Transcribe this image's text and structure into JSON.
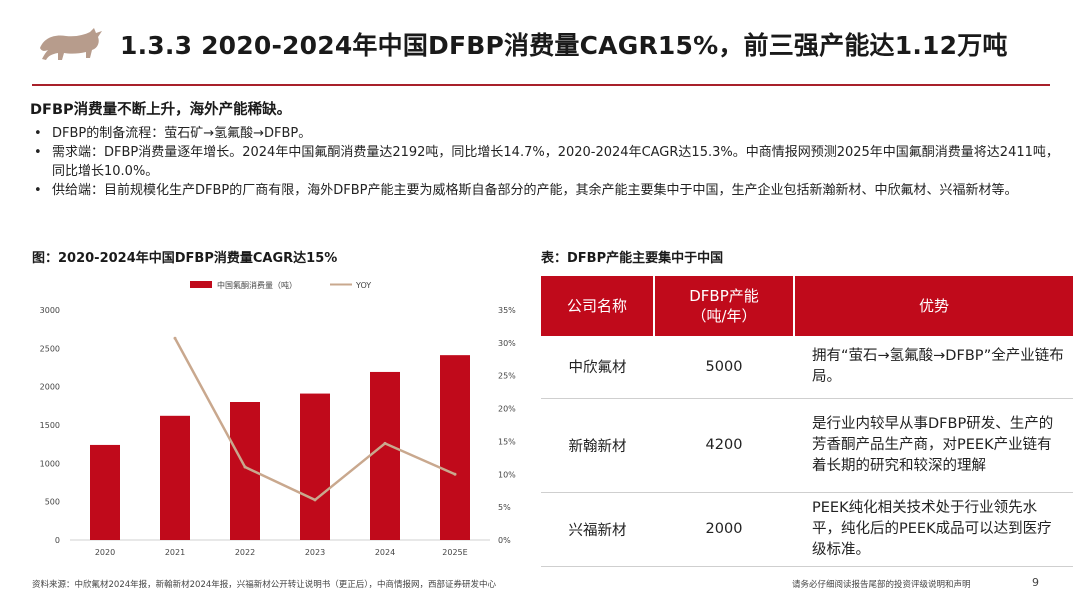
{
  "header": {
    "title": "1.3.3 2020-2024年中国DFBP消费量CAGR15%，前三强产能达1.12万吨"
  },
  "summary": {
    "headline": "DFBP消费量不断上升，海外产能稀缺。",
    "bullets": [
      "DFBP的制备流程：萤石矿→氢氟酸→DFBP。",
      "需求端：DFBP消费量逐年增长。2024年中国氟酮消费量达2192吨，同比增长14.7%，2020-2024年CAGR达15.3%。中商情报网预测2025年中国氟酮消费量将达2411吨，同比增长10.0%。",
      "供给端：目前规模化生产DFBP的厂商有限，海外DFBP产能主要为威格斯自备部分的产能，其余产能主要集中于中国，生产企业包括新瀚新材、中欣氟材、兴福新材等。"
    ]
  },
  "figure_caption": "图：2020-2024年中国DFBP消费量CAGR达15%",
  "table_caption": "表：DFBP产能主要集中于中国",
  "chart_data": {
    "type": "bar",
    "categories": [
      "2020",
      "2021",
      "2022",
      "2023",
      "2024",
      "2025E"
    ],
    "series": [
      {
        "name": "中国氟酮消费量（吨）",
        "kind": "bar",
        "axis": "left",
        "color": "#c00a1b",
        "values": [
          1240,
          1620,
          1800,
          1910,
          2192,
          2411
        ]
      },
      {
        "name": "YOY",
        "kind": "line",
        "axis": "right",
        "color": "#c9a88e",
        "values": [
          null,
          30.7,
          11.1,
          6.1,
          14.7,
          10.0
        ]
      }
    ],
    "ylim": [
      0,
      3000
    ],
    "y_ticks": [
      "0",
      "500",
      "1000",
      "1500",
      "2000",
      "2500",
      "3000"
    ],
    "y2lim": [
      0,
      35
    ],
    "y2_ticks": [
      "0%",
      "5%",
      "10%",
      "15%",
      "20%",
      "25%",
      "30%",
      "35%"
    ],
    "legend_position": "top",
    "grid": false
  },
  "table": {
    "headers": [
      "公司名称",
      "DFBP产能（吨/年）",
      "优势"
    ],
    "rows": [
      {
        "company": "中欣氟材",
        "capacity": "5000",
        "advantage": "拥有“萤石→氢氟酸→DFBP”全产业链布局。"
      },
      {
        "company": "新翰新材",
        "capacity": "4200",
        "advantage": "是行业内较早从事DFBP研发、生产的芳香酮产品生产商，对PEEK产业链有着长期的研究和较深的理解"
      },
      {
        "company": "兴福新材",
        "capacity": "2000",
        "advantage": "PEEK纯化相关技术处于行业领先水平，纯化后的PEEK成品可以达到医疗级标准。"
      }
    ]
  },
  "footer": {
    "source": "资料来源：中欣氟材2024年报，新翰新材2024年报，兴福新材公开转让说明书（更正后），中商情报网，西部证券研发中心",
    "disclaimer": "请务必仔细阅读报告尾部的投资评级说明和声明",
    "page": "9"
  },
  "colors": {
    "accent": "#c00a1b",
    "line": "#c9a88e",
    "rule": "#a8202a"
  }
}
